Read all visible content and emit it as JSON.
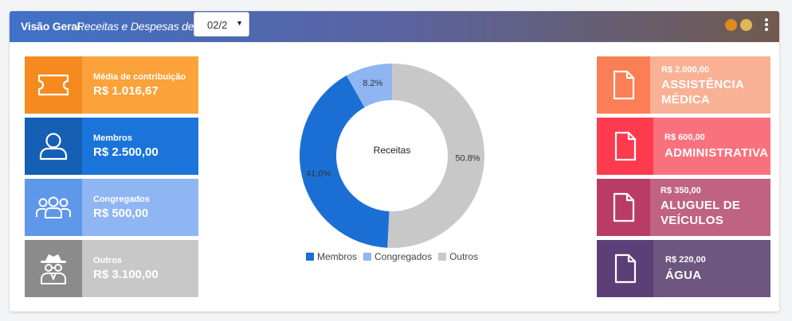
{
  "header": {
    "title": "Visão Geral",
    "subtitle": "Receitas e Despesas de",
    "period_select": {
      "value": "02/2"
    },
    "dots": [
      {
        "color": "#e08a20"
      },
      {
        "color": "#e2b65a"
      }
    ]
  },
  "income_tiles": [
    {
      "icon": "ticket-icon",
      "label": "Média de contribuição",
      "amount": "R$ 1.016,67",
      "color_icon": "#f58a1f",
      "color_text": "#fba23a"
    },
    {
      "icon": "user-icon",
      "label": "Membros",
      "amount": "R$ 2.500,00",
      "color_icon": "#155fb4",
      "color_text": "#1a74d9"
    },
    {
      "icon": "group-icon",
      "label": "Congregados",
      "amount": "R$ 500,00",
      "color_icon": "#5f97e9",
      "color_text": "#8fb5f2"
    },
    {
      "icon": "spy-icon",
      "label": "Outros",
      "amount": "R$ 3.100,00",
      "color_icon": "#8b8b8b",
      "color_text": "#c8c8c8"
    }
  ],
  "expense_tiles": [
    {
      "icon": "document-icon",
      "amount": "R$ 2.000,00",
      "name_lines": [
        "ASSISTÊNCIA",
        "MÉDICA"
      ],
      "color_icon": "#fa7f55",
      "color_text": "#f8b194"
    },
    {
      "icon": "document-icon",
      "amount": "R$ 600,00",
      "name_lines": [
        "ADMINISTRATIVA"
      ],
      "color_icon": "#fe3a4e",
      "color_text": "#fa717e"
    },
    {
      "icon": "document-icon",
      "amount": "R$ 350,00",
      "name_lines": [
        "ALUGUEL DE",
        "VEÍCULOS"
      ],
      "color_icon": "#b93c66",
      "color_text": "#c06383"
    },
    {
      "icon": "document-icon",
      "amount": "R$ 220,00",
      "name_lines": [
        "ÁGUA"
      ],
      "color_icon": "#5c3f76",
      "color_text": "#6d5680"
    }
  ],
  "chart_data": {
    "type": "pie",
    "donut": true,
    "center_label": "Receitas",
    "categories": [
      "Membros",
      "Congregados",
      "Outros"
    ],
    "values": [
      41.0,
      8.2,
      50.8
    ],
    "value_labels": [
      "41.0%",
      "8.2%",
      "50.8%"
    ],
    "colors": [
      "#1b6fd4",
      "#8fb5f2",
      "#c8c8c8"
    ],
    "legend_position": "bottom"
  }
}
